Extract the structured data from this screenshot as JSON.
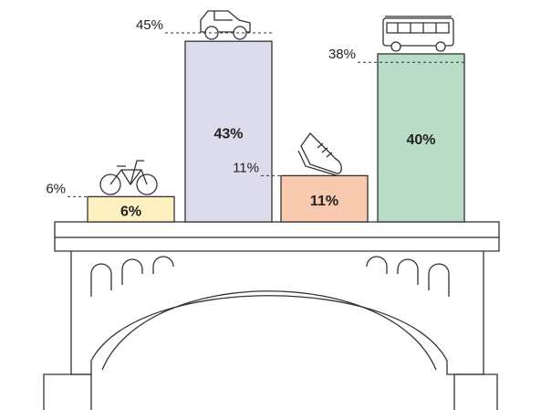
{
  "chart_data": {
    "type": "bar",
    "values": [
      6,
      43,
      11,
      40
    ],
    "value_labels": [
      "6%",
      "43%",
      "11%",
      "40%"
    ],
    "colors": [
      "#fdf0c0",
      "#dcdcec",
      "#f9c9b0",
      "#b8dcc6"
    ],
    "reference_values": [
      6,
      45,
      11,
      38
    ],
    "reference_labels": [
      "6%",
      "45%",
      "11%",
      "38%"
    ]
  }
}
